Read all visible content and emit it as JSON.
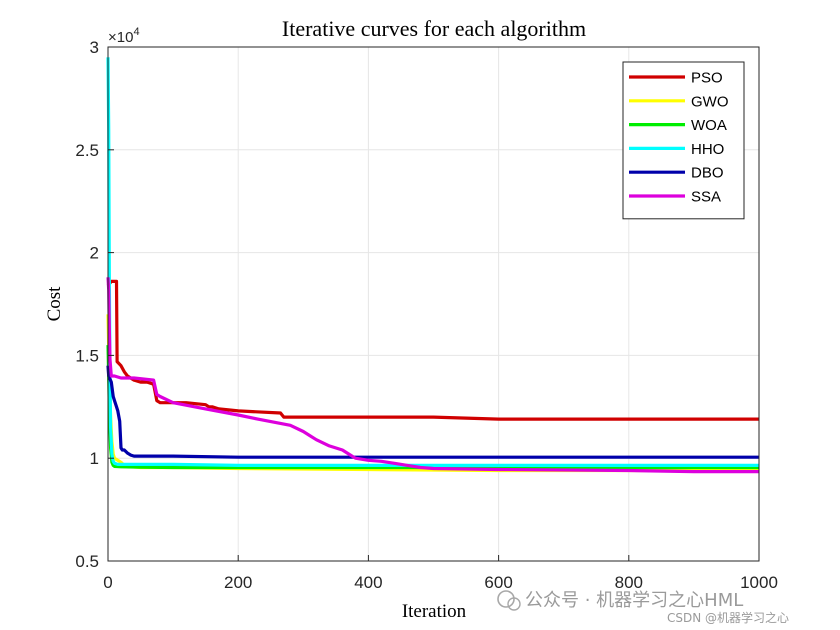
{
  "chart_data": {
    "type": "line",
    "title": "Iterative curves for each algorithm",
    "xlabel": "Iteration",
    "ylabel": "Cost",
    "y_exponent_label": "×10",
    "y_exponent_power": "4",
    "xlim": [
      0,
      1000
    ],
    "ylim": [
      0.5,
      3
    ],
    "xticks": [
      "0",
      "200",
      "400",
      "600",
      "800",
      "1000"
    ],
    "yticks": [
      "0.5",
      "1",
      "1.5",
      "2",
      "2.5",
      "3"
    ],
    "grid": true,
    "legend_position": "top-right",
    "series": [
      {
        "name": "PSO",
        "color": "#d00000",
        "x": [
          0,
          5,
          6,
          13,
          14,
          20,
          25,
          30,
          40,
          50,
          60,
          70,
          75,
          80,
          90,
          100,
          120,
          150,
          155,
          160,
          170,
          200,
          265,
          270,
          300,
          400,
          500,
          600,
          700,
          800,
          850,
          900,
          1000
        ],
        "y": [
          1.84,
          1.86,
          1.86,
          1.86,
          1.47,
          1.45,
          1.42,
          1.4,
          1.38,
          1.37,
          1.37,
          1.36,
          1.28,
          1.27,
          1.27,
          1.27,
          1.27,
          1.26,
          1.25,
          1.25,
          1.24,
          1.23,
          1.22,
          1.2,
          1.2,
          1.2,
          1.2,
          1.19,
          1.19,
          1.19,
          1.19,
          1.19,
          1.19
        ]
      },
      {
        "name": "GWO",
        "color": "#ffff00",
        "x": [
          0,
          2,
          4,
          6,
          8,
          10,
          15,
          20,
          25,
          30,
          50,
          100,
          200,
          400,
          600,
          800,
          1000
        ],
        "y": [
          1.7,
          1.4,
          1.2,
          1.08,
          1.02,
          1.0,
          0.99,
          0.98,
          0.965,
          0.96,
          0.955,
          0.955,
          0.95,
          0.945,
          0.94,
          0.94,
          0.94
        ]
      },
      {
        "name": "WOA",
        "color": "#00ee00",
        "x": [
          0,
          2,
          4,
          6,
          8,
          10,
          20,
          50,
          100,
          200,
          400,
          600,
          800,
          1000
        ],
        "y": [
          1.55,
          1.25,
          1.05,
          0.98,
          0.965,
          0.96,
          0.958,
          0.956,
          0.955,
          0.955,
          0.955,
          0.955,
          0.955,
          0.955
        ]
      },
      {
        "name": "HHO",
        "color": "#00ffff",
        "x": [
          0,
          1,
          2,
          3,
          4,
          6,
          8,
          10,
          15,
          20,
          30,
          50,
          100,
          200,
          400,
          600,
          800,
          1000
        ],
        "y": [
          2.95,
          2.6,
          1.9,
          1.4,
          1.15,
          1.02,
          0.985,
          0.975,
          0.97,
          0.97,
          0.97,
          0.97,
          0.97,
          0.965,
          0.965,
          0.965,
          0.965,
          0.965
        ]
      },
      {
        "name": "DBO",
        "color": "#0000aa",
        "x": [
          0,
          1,
          5,
          8,
          10,
          13,
          15,
          18,
          20,
          22,
          25,
          30,
          35,
          40,
          60,
          100,
          200,
          400,
          600,
          800,
          1000
        ],
        "y": [
          1.45,
          1.4,
          1.37,
          1.3,
          1.28,
          1.25,
          1.23,
          1.18,
          1.05,
          1.04,
          1.04,
          1.025,
          1.015,
          1.01,
          1.01,
          1.01,
          1.005,
          1.005,
          1.005,
          1.005,
          1.005
        ]
      },
      {
        "name": "SSA",
        "color": "#dd00dd",
        "x": [
          0,
          1,
          2,
          3,
          5,
          10,
          20,
          40,
          70,
          75,
          80,
          100,
          150,
          200,
          230,
          280,
          300,
          310,
          320,
          340,
          360,
          370,
          380,
          400,
          420,
          440,
          460,
          480,
          500,
          600,
          800,
          900,
          1000
        ],
        "y": [
          1.88,
          1.82,
          1.64,
          1.48,
          1.4,
          1.4,
          1.39,
          1.39,
          1.38,
          1.31,
          1.3,
          1.27,
          1.24,
          1.21,
          1.19,
          1.16,
          1.13,
          1.11,
          1.09,
          1.06,
          1.04,
          1.02,
          1.0,
          0.99,
          0.985,
          0.975,
          0.965,
          0.955,
          0.95,
          0.945,
          0.94,
          0.935,
          0.935
        ]
      }
    ]
  },
  "watermark": {
    "main": "公众号 · 机器学习之心HML",
    "sub": "CSDN @机器学习之心"
  }
}
